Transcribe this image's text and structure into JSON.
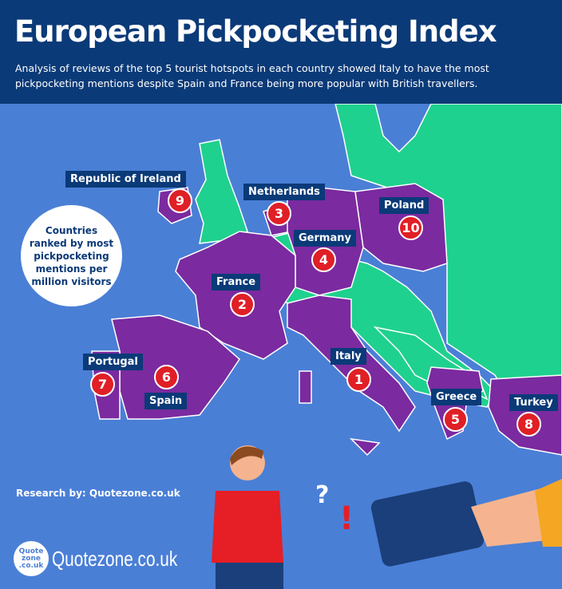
{
  "header": {
    "title": "European Pickpocketing Index",
    "subtitle": "Analysis of reviews of the top 5 tourist hotspots in each country showed Italy to have the most pickpocketing mentions despite Spain and France being more popular with British travellers."
  },
  "colors": {
    "header": "#0b3a78",
    "sea": "#4a7fd6",
    "ranked_country": "#7b2aa0",
    "other_land": "#1fd18e",
    "rank_badge": "#e01f26"
  },
  "note": "Countries ranked by most pickpocketing mentions per million visitors",
  "countries": [
    {
      "name": "Italy",
      "rank": "1"
    },
    {
      "name": "France",
      "rank": "2"
    },
    {
      "name": "Netherlands",
      "rank": "3"
    },
    {
      "name": "Germany",
      "rank": "4"
    },
    {
      "name": "Greece",
      "rank": "5"
    },
    {
      "name": "Spain",
      "rank": "6"
    },
    {
      "name": "Portugal",
      "rank": "7"
    },
    {
      "name": "Turkey",
      "rank": "8"
    },
    {
      "name": "Republic of Ireland",
      "rank": "9"
    },
    {
      "name": "Poland",
      "rank": "10"
    }
  ],
  "footer": {
    "research_prefix": "Research by:",
    "research_source": "Quotezone.co.uk",
    "logo_text": "Quote zone .co.uk",
    "brand": "Quotezone.co.uk"
  }
}
